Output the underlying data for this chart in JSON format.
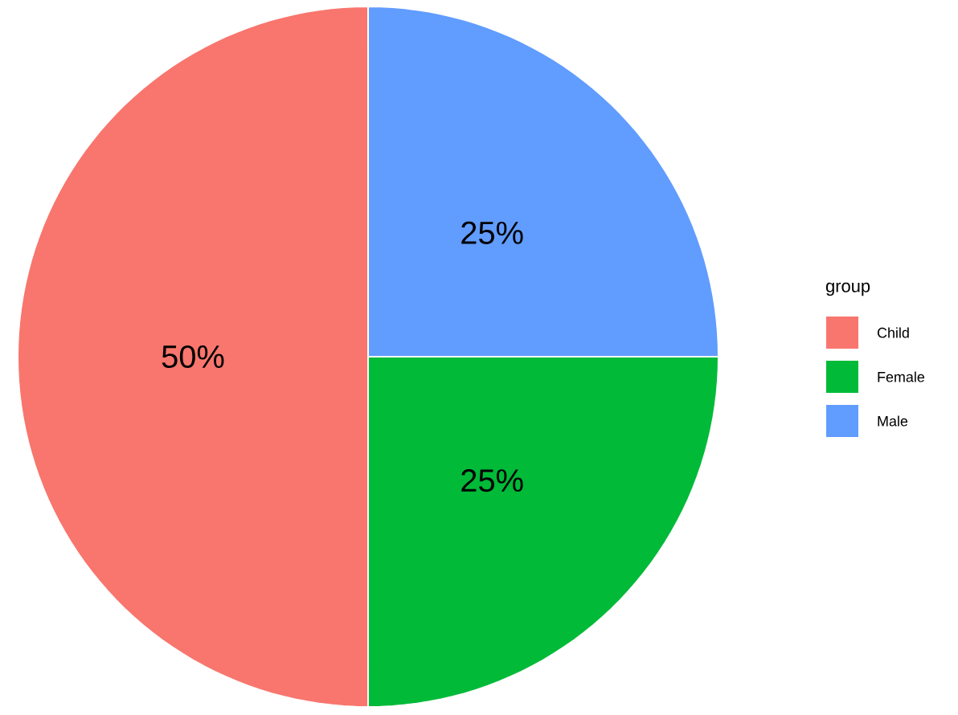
{
  "chart_data": {
    "type": "pie",
    "legend_title": "group",
    "categories": [
      "Child",
      "Female",
      "Male"
    ],
    "values": [
      50,
      25,
      25
    ],
    "colors": [
      "#f8766d",
      "#00ba38",
      "#619cff"
    ],
    "value_labels": [
      "50%",
      "25%",
      "25%"
    ],
    "legend": "right"
  }
}
